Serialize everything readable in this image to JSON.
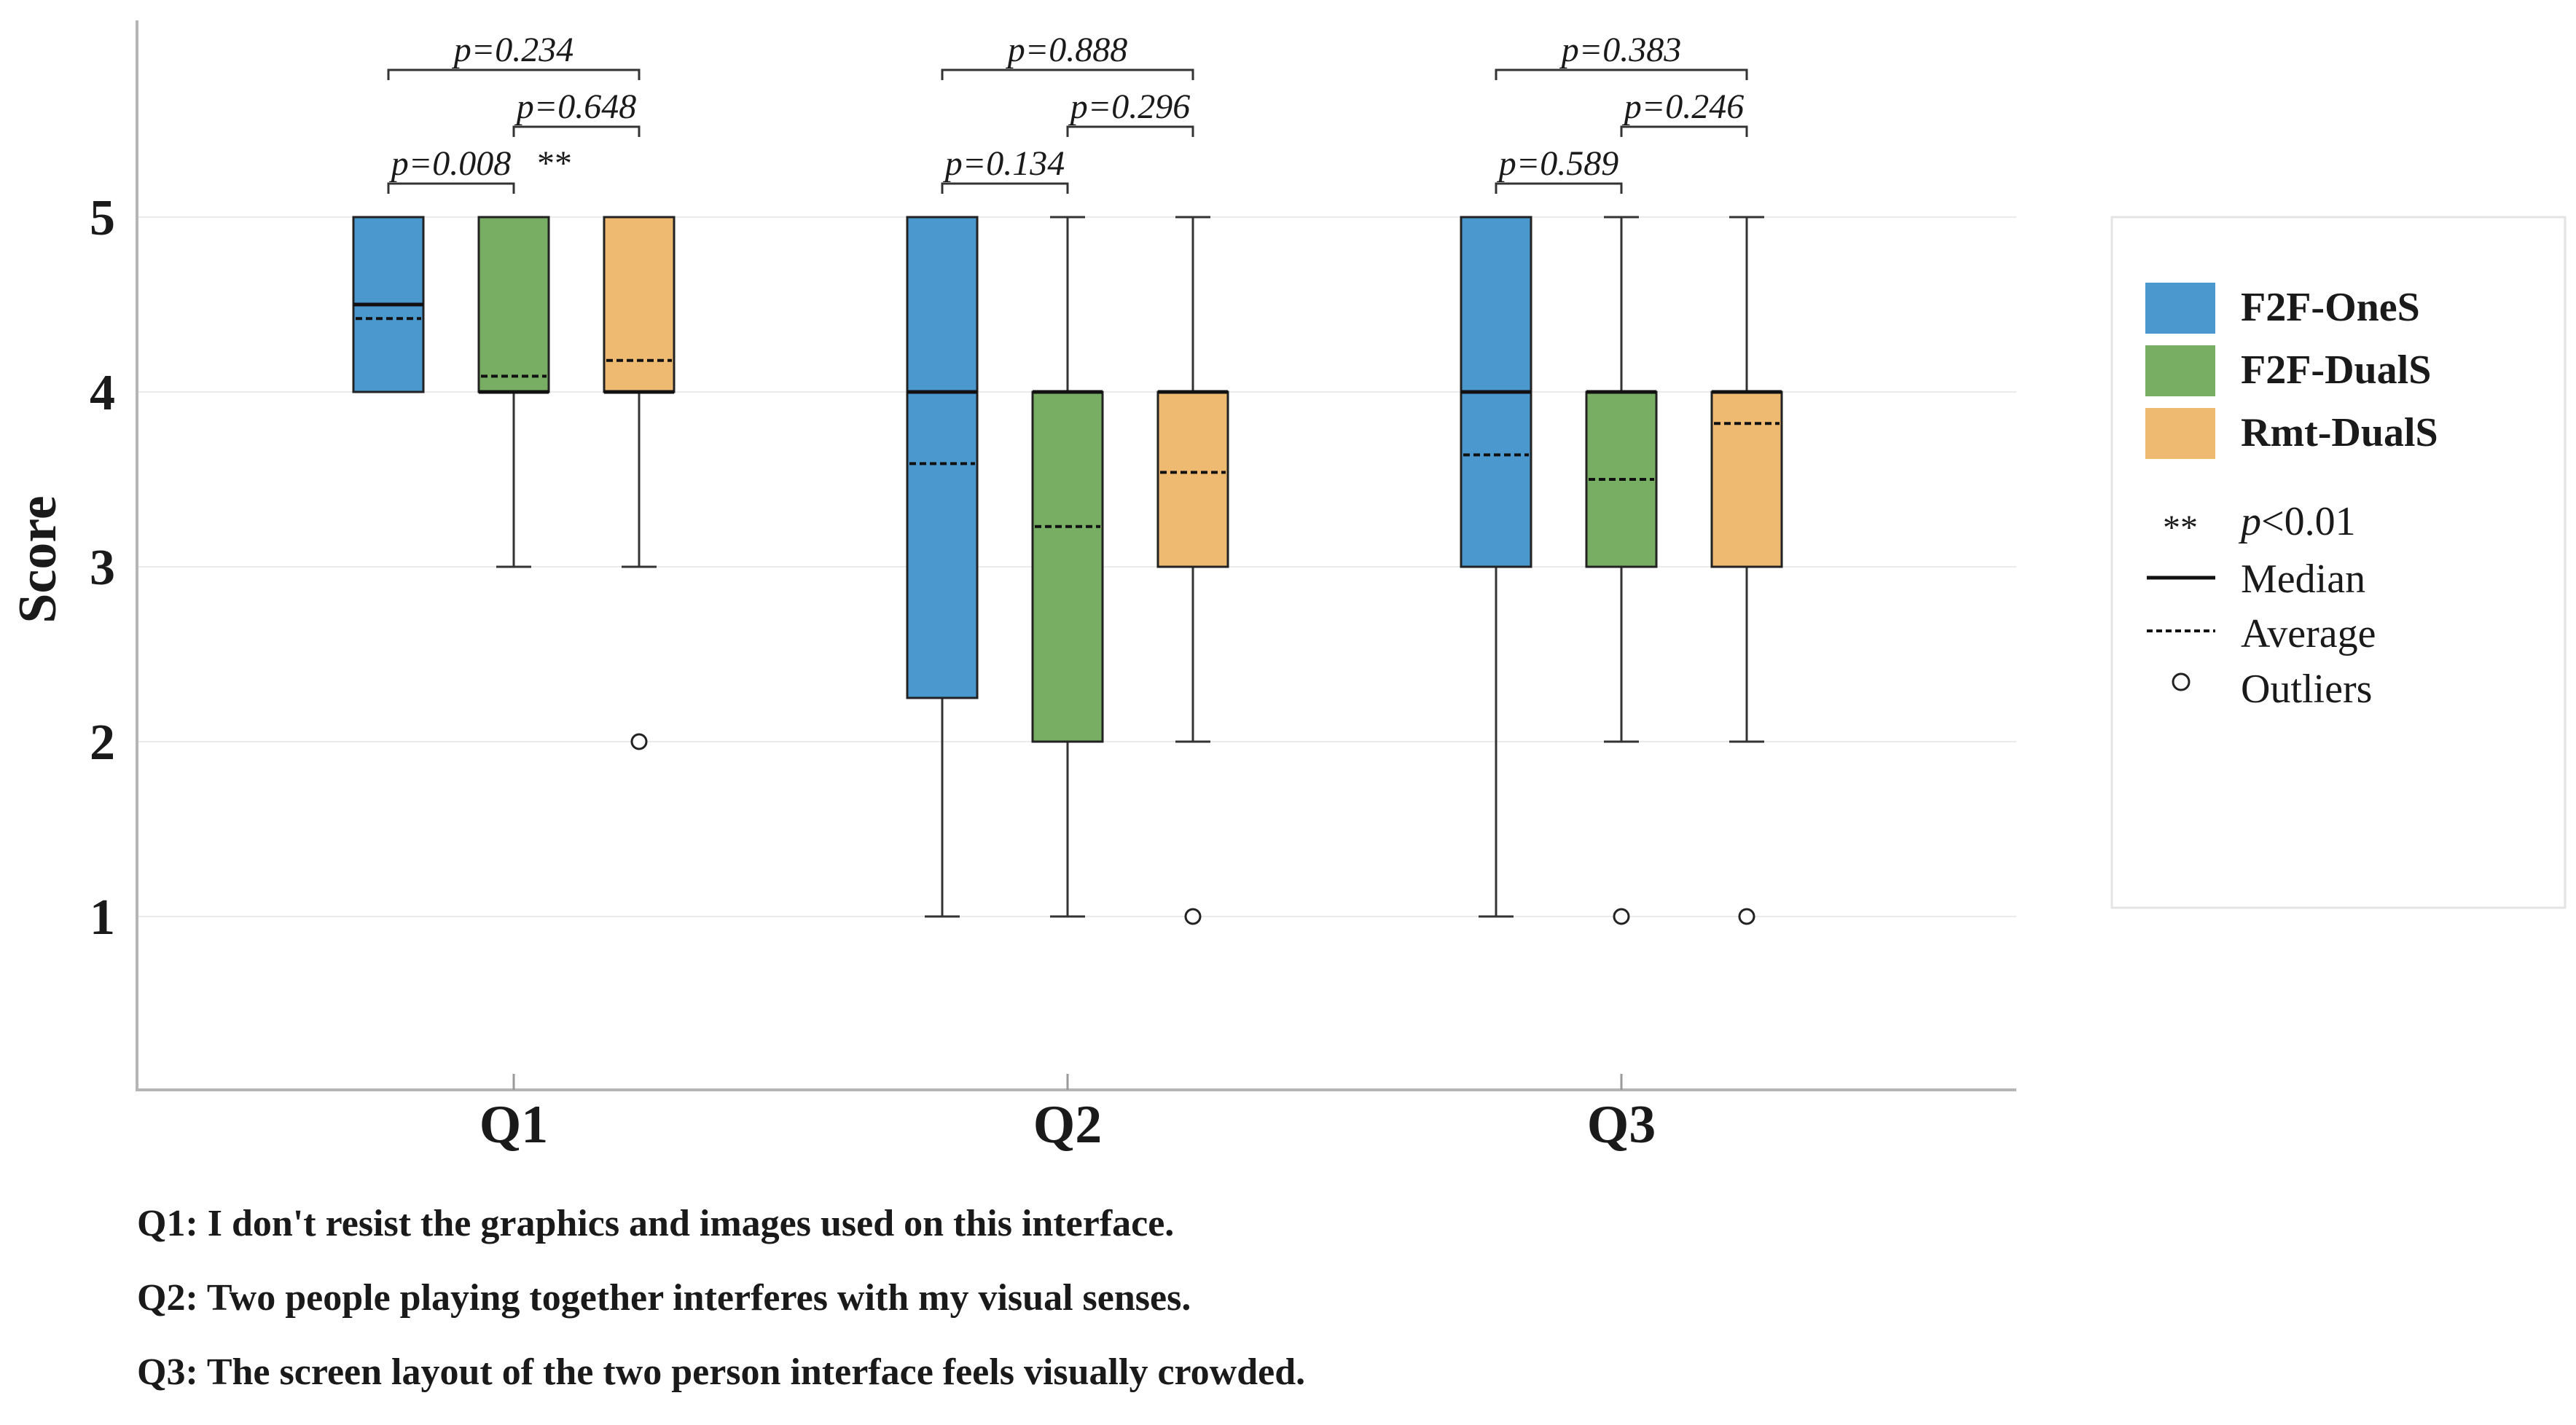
{
  "chart_data": {
    "type": "box",
    "ylabel": "Score",
    "ylim": [
      0,
      6
    ],
    "yticks": [
      1,
      2,
      3,
      4,
      5
    ],
    "categories": [
      "Q1",
      "Q2",
      "Q3"
    ],
    "series": [
      {
        "name": "F2F-OneS",
        "color": "#4a98cd",
        "boxes": [
          {
            "whisker_low": 4,
            "q1": 4,
            "median": 4.5,
            "mean": 4.42,
            "q3": 5,
            "whisker_high": 5,
            "outliers": []
          },
          {
            "whisker_low": 1,
            "q1": 2.25,
            "median": 4,
            "mean": 3.59,
            "q3": 5,
            "whisker_high": 5,
            "outliers": []
          },
          {
            "whisker_low": 1,
            "q1": 3,
            "median": 4,
            "mean": 3.64,
            "q3": 5,
            "whisker_high": 5,
            "outliers": []
          }
        ]
      },
      {
        "name": "F2F-DualS",
        "color": "#78ad64",
        "boxes": [
          {
            "whisker_low": 3,
            "q1": 4,
            "median": 4,
            "mean": 4.09,
            "q3": 5,
            "whisker_high": 5,
            "outliers": []
          },
          {
            "whisker_low": 1,
            "q1": 2,
            "median": 4,
            "mean": 3.23,
            "q3": 4,
            "whisker_high": 5,
            "outliers": []
          },
          {
            "whisker_low": 2,
            "q1": 3,
            "median": 4,
            "mean": 3.5,
            "q3": 4,
            "whisker_high": 5,
            "outliers": [
              1
            ]
          }
        ]
      },
      {
        "name": "Rmt-DualS",
        "color": "#eeba72",
        "boxes": [
          {
            "whisker_low": 3,
            "q1": 4,
            "median": 4,
            "mean": 4.18,
            "q3": 5,
            "whisker_high": 5,
            "outliers": [
              2
            ]
          },
          {
            "whisker_low": 2,
            "q1": 3,
            "median": 4,
            "mean": 3.54,
            "q3": 4,
            "whisker_high": 5,
            "outliers": [
              1
            ]
          },
          {
            "whisker_low": 2,
            "q1": 3,
            "median": 4,
            "mean": 3.82,
            "q3": 4,
            "whisker_high": 5,
            "outliers": [
              1
            ]
          }
        ]
      }
    ],
    "significance": [
      {
        "category": "Q1",
        "from": 0,
        "to": 2,
        "label": "p=0.234",
        "stars": ""
      },
      {
        "category": "Q1",
        "from": 1,
        "to": 2,
        "label": "p=0.648",
        "stars": ""
      },
      {
        "category": "Q1",
        "from": 0,
        "to": 1,
        "label": "p=0.008",
        "stars": "**"
      },
      {
        "category": "Q2",
        "from": 0,
        "to": 2,
        "label": "p=0.888",
        "stars": ""
      },
      {
        "category": "Q2",
        "from": 1,
        "to": 2,
        "label": "p=0.296",
        "stars": ""
      },
      {
        "category": "Q2",
        "from": 0,
        "to": 1,
        "label": "p=0.134",
        "stars": ""
      },
      {
        "category": "Q3",
        "from": 0,
        "to": 2,
        "label": "p=0.383",
        "stars": ""
      },
      {
        "category": "Q3",
        "from": 1,
        "to": 2,
        "label": "p=0.246",
        "stars": ""
      },
      {
        "category": "Q3",
        "from": 0,
        "to": 1,
        "label": "p=0.589",
        "stars": ""
      }
    ],
    "legend": {
      "placement": "right",
      "series": [
        "F2F-OneS",
        "F2F-DualS",
        "Rmt-DualS"
      ],
      "symbols": [
        {
          "symbol": "**",
          "label": "p<0.01",
          "label_prefix": "p",
          "label_suffix": "<0.01"
        },
        {
          "symbol": "solid-line",
          "label": "Median"
        },
        {
          "symbol": "dashed-line",
          "label": "Average"
        },
        {
          "symbol": "circle",
          "label": "Outliers"
        }
      ]
    }
  },
  "captions": [
    "Q1: I don't resist the graphics and images used on this interface.",
    "Q2: Two people playing together interferes with my visual senses.",
    "Q3: The screen layout of the two person interface feels visually crowded."
  ]
}
